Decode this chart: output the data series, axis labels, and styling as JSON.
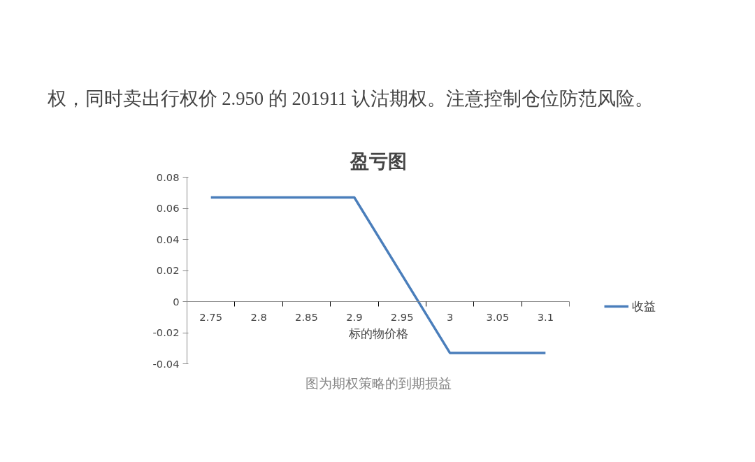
{
  "chart_data": {
    "type": "line",
    "title": "盈亏图",
    "xlabel": "标的物价格",
    "categories": [
      "2.75",
      "2.8",
      "2.85",
      "2.9",
      "2.95",
      "3",
      "3.05",
      "3.1"
    ],
    "series": [
      {
        "name": "收益",
        "color": "#4a7ebb",
        "values": [
          0.067,
          0.067,
          0.067,
          0.067,
          0.017,
          -0.033,
          -0.033,
          -0.033
        ]
      }
    ],
    "ylim": [
      -0.04,
      0.08
    ],
    "yticks": [
      -0.04,
      -0.02,
      0,
      0.02,
      0.04,
      0.06,
      0.08
    ],
    "grid": false,
    "legend": "right",
    "marker": "none",
    "line_style": "solid",
    "annotations": [
      "权，同时卖出行权价 2.950 的 201911 认沽期权。注意控制仓位防范风险。",
      "图为期权策略的到期损益"
    ]
  }
}
